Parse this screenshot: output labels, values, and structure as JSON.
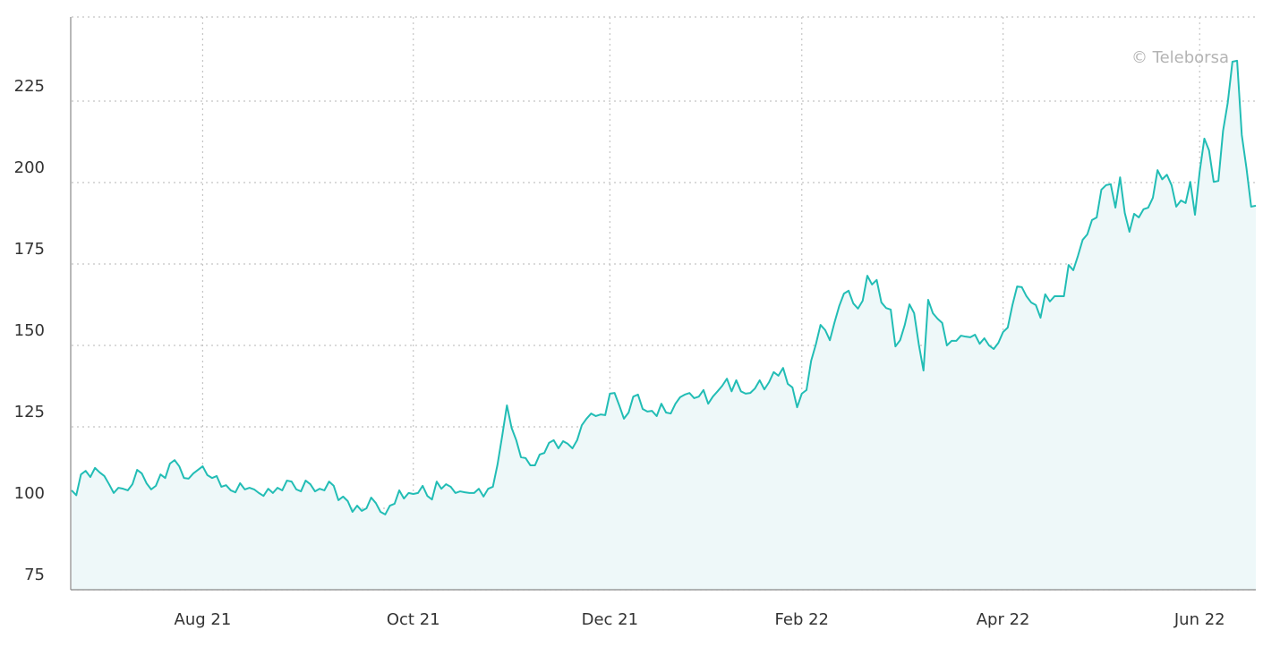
{
  "chart_data": {
    "type": "area",
    "watermark": "© Teleborsa",
    "x": [
      0,
      1,
      2,
      3,
      4,
      5,
      6,
      7,
      8,
      9,
      10,
      11,
      12,
      13,
      14,
      15,
      16,
      17,
      18,
      19,
      20,
      21,
      22,
      23,
      24,
      25,
      26,
      27,
      28,
      29,
      30,
      31,
      32,
      33,
      34,
      35,
      36,
      37,
      38,
      39,
      40,
      41,
      42,
      43,
      44,
      45,
      46,
      47,
      48,
      49,
      50,
      51,
      52,
      53,
      54,
      55,
      56,
      57,
      58,
      59,
      60,
      61,
      62,
      63,
      64,
      65,
      66,
      67,
      68,
      69,
      70,
      71,
      72,
      73,
      74,
      75,
      76,
      77,
      78,
      79,
      80,
      81,
      82,
      83,
      84,
      85,
      86,
      87,
      88,
      89,
      90,
      91,
      92,
      93,
      94,
      95,
      96,
      97,
      98,
      99,
      100,
      101,
      102,
      103,
      104,
      105,
      106,
      107,
      108,
      109,
      110,
      111,
      112,
      113,
      114,
      115,
      116,
      117,
      118,
      119,
      120,
      121,
      122,
      123,
      124,
      125,
      126,
      127,
      128,
      129,
      130,
      131,
      132,
      133,
      134,
      135,
      136,
      137,
      138,
      139,
      140,
      141,
      142,
      143,
      144,
      145,
      146,
      147,
      148,
      149,
      150,
      151,
      152,
      153,
      154,
      155,
      156,
      157,
      158,
      159,
      160,
      161,
      162,
      163,
      164,
      165,
      166,
      167,
      168,
      169,
      170,
      171,
      172,
      173,
      174,
      175,
      176,
      177,
      178,
      179,
      180,
      181,
      182,
      183,
      184,
      185,
      186,
      187,
      188,
      189,
      190,
      191,
      192,
      193,
      194,
      195,
      196,
      197,
      198,
      199,
      200,
      201,
      202,
      203,
      204,
      205,
      206,
      207,
      208,
      209,
      210,
      211,
      212,
      213,
      214,
      215,
      216,
      217,
      218,
      219,
      220,
      221,
      222,
      223,
      224,
      225,
      226,
      227,
      228,
      229,
      230,
      231,
      232,
      233,
      234,
      235,
      236,
      237,
      238,
      239,
      240,
      241,
      242,
      243,
      244,
      245,
      246,
      247,
      248,
      249,
      250,
      251,
      252,
      253
    ],
    "series": [
      {
        "color": "#22bdb5",
        "fill": "#eef8f9",
        "values": [
          105.5,
          104,
          110.4,
          111.5,
          109.6,
          112.4,
          111.0,
          109.9,
          107.4,
          104.7,
          106.3,
          106.0,
          105.5,
          107.4,
          111.8,
          110.7,
          107.7,
          105.8,
          106.9,
          110.4,
          109.3,
          113.7,
          114.8,
          112.9,
          109.3,
          109.1,
          110.7,
          111.8,
          112.9,
          110.2,
          109.3,
          109.9,
          106.6,
          107.1,
          105.5,
          104.9,
          107.7,
          105.8,
          106.3,
          105.8,
          104.7,
          103.8,
          106.0,
          104.7,
          106.3,
          105.5,
          108.5,
          108.2,
          105.8,
          105.2,
          108.5,
          107.4,
          105.2,
          106.0,
          105.5,
          108.2,
          106.9,
          102.5,
          103.6,
          102.2,
          98.9,
          100.8,
          99.2,
          100.0,
          103.3,
          101.6,
          98.9,
          98.1,
          100.8,
          101.4,
          105.5,
          103.0,
          104.7,
          104.4,
          104.7,
          106.9,
          103.8,
          102.7,
          108.2,
          106.0,
          107.4,
          106.6,
          104.7,
          105.2,
          104.9,
          104.7,
          104.7,
          106.0,
          103.6,
          106.0,
          106.6,
          113.5,
          122.3,
          131.6,
          124.7,
          120.9,
          115.7,
          115.4,
          113.2,
          113.2,
          116.5,
          117.0,
          120.1,
          120.9,
          118.4,
          120.6,
          119.8,
          118.4,
          120.9,
          125.5,
          127.5,
          129.1,
          128.3,
          128.8,
          128.6,
          135.2,
          135.4,
          131.6,
          127.5,
          129.4,
          134.3,
          134.9,
          130.5,
          129.7,
          129.9,
          128.3,
          132.1,
          129.4,
          129.1,
          132.1,
          134.1,
          134.9,
          135.4,
          133.8,
          134.3,
          136.3,
          132.1,
          134.3,
          135.9,
          137.6,
          139.8,
          135.9,
          139.3,
          135.9,
          135.2,
          135.4,
          136.8,
          139.3,
          136.5,
          138.7,
          141.8,
          140.7,
          143.1,
          138.2,
          137.1,
          131.0,
          135.2,
          136.3,
          145.3,
          150.3,
          156.3,
          154.7,
          151.6,
          157.1,
          162.1,
          165.9,
          166.8,
          162.9,
          161.3,
          163.7,
          171.4,
          168.7,
          170.1,
          163.2,
          161.5,
          161.0,
          149.7,
          151.6,
          156.3,
          162.6,
          159.9,
          150.3,
          142.3,
          164.0,
          159.9,
          158.2,
          156.9,
          150.0,
          151.4,
          151.4,
          153.0,
          152.7,
          152.5,
          153.3,
          150.5,
          152.2,
          150.0,
          148.9,
          150.8,
          154.1,
          155.5,
          162.4,
          168.1,
          167.9,
          165.1,
          163.2,
          162.4,
          158.5,
          165.7,
          163.5,
          165.1,
          165.1,
          165.1,
          174.7,
          173.1,
          177.5,
          182.4,
          184.1,
          188.5,
          189.3,
          197.8,
          199.2,
          199.5,
          192.3,
          201.6,
          190.7,
          184.9,
          190.4,
          189.3,
          191.8,
          192.3,
          195.3,
          203.8,
          201.0,
          202.4,
          199.2,
          192.6,
          194.5,
          193.7,
          200.2,
          190.1,
          203.3,
          213.5,
          209.9,
          200.2,
          200.5,
          215.9,
          224.5,
          237.1,
          237.4,
          214.6,
          204.4,
          192.6,
          192.9
        ]
      }
    ],
    "xlim": [
      0,
      253
    ],
    "xticks": [
      {
        "value": 28,
        "label": "Aug 21"
      },
      {
        "value": 73,
        "label": "Oct 21"
      },
      {
        "value": 115,
        "label": "Dec 21"
      },
      {
        "value": 156,
        "label": "Feb 22"
      },
      {
        "value": 199,
        "label": "Apr 22"
      },
      {
        "value": 241,
        "label": "Jun 22"
      }
    ],
    "ylim": [
      75,
      250
    ],
    "yticks": [
      75,
      100,
      125,
      150,
      175,
      200,
      225
    ],
    "grid": true
  }
}
